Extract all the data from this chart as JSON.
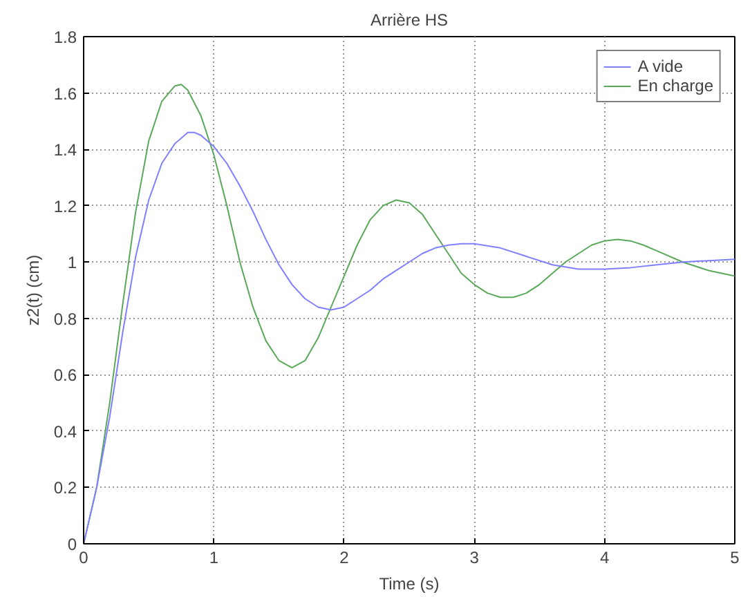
{
  "chart_data": {
    "type": "line",
    "title": "Arrière HS",
    "xlabel": "Time (s)",
    "ylabel": "z2(t) (cm)",
    "xlim": [
      0,
      5
    ],
    "ylim": [
      0,
      1.8
    ],
    "xticks": [
      0,
      1,
      2,
      3,
      4,
      5
    ],
    "yticks": [
      0,
      0.2,
      0.4,
      0.6,
      0.8,
      1,
      1.2,
      1.4,
      1.6,
      1.8
    ],
    "grid": true,
    "legend": "top right",
    "line_style": "solid",
    "series": [
      {
        "name": "A vide",
        "color": "#7f7fff",
        "x": [
          0,
          0.05,
          0.1,
          0.2,
          0.3,
          0.4,
          0.5,
          0.6,
          0.7,
          0.8,
          0.85,
          0.9,
          1.0,
          1.1,
          1.2,
          1.3,
          1.4,
          1.5,
          1.6,
          1.7,
          1.8,
          1.9,
          2.0,
          2.1,
          2.2,
          2.3,
          2.4,
          2.5,
          2.6,
          2.7,
          2.8,
          2.9,
          3.0,
          3.2,
          3.4,
          3.6,
          3.8,
          4.0,
          4.2,
          4.4,
          4.6,
          4.8,
          5.0
        ],
        "values": [
          0,
          0.1,
          0.2,
          0.45,
          0.75,
          1.02,
          1.22,
          1.35,
          1.42,
          1.46,
          1.46,
          1.45,
          1.41,
          1.35,
          1.27,
          1.18,
          1.08,
          0.99,
          0.92,
          0.87,
          0.84,
          0.83,
          0.84,
          0.87,
          0.9,
          0.94,
          0.97,
          1.0,
          1.03,
          1.05,
          1.06,
          1.065,
          1.065,
          1.05,
          1.02,
          0.99,
          0.975,
          0.975,
          0.98,
          0.99,
          1.0,
          1.005,
          1.01
        ]
      },
      {
        "name": "En charge",
        "color": "#5aa85a",
        "x": [
          0,
          0.1,
          0.2,
          0.3,
          0.4,
          0.5,
          0.6,
          0.7,
          0.75,
          0.8,
          0.9,
          1.0,
          1.1,
          1.2,
          1.3,
          1.4,
          1.5,
          1.6,
          1.7,
          1.8,
          1.9,
          2.0,
          2.1,
          2.2,
          2.3,
          2.4,
          2.5,
          2.6,
          2.7,
          2.8,
          2.9,
          3.0,
          3.1,
          3.2,
          3.3,
          3.4,
          3.5,
          3.6,
          3.7,
          3.8,
          3.9,
          4.0,
          4.1,
          4.2,
          4.3,
          4.4,
          4.6,
          4.8,
          5.0
        ],
        "values": [
          0,
          0.2,
          0.5,
          0.85,
          1.18,
          1.43,
          1.57,
          1.625,
          1.63,
          1.61,
          1.52,
          1.38,
          1.2,
          1.0,
          0.84,
          0.72,
          0.65,
          0.625,
          0.65,
          0.73,
          0.84,
          0.95,
          1.06,
          1.15,
          1.2,
          1.22,
          1.21,
          1.17,
          1.1,
          1.03,
          0.96,
          0.92,
          0.89,
          0.875,
          0.875,
          0.89,
          0.92,
          0.96,
          1.0,
          1.03,
          1.06,
          1.075,
          1.08,
          1.075,
          1.06,
          1.04,
          1.0,
          0.97,
          0.95
        ]
      }
    ]
  }
}
